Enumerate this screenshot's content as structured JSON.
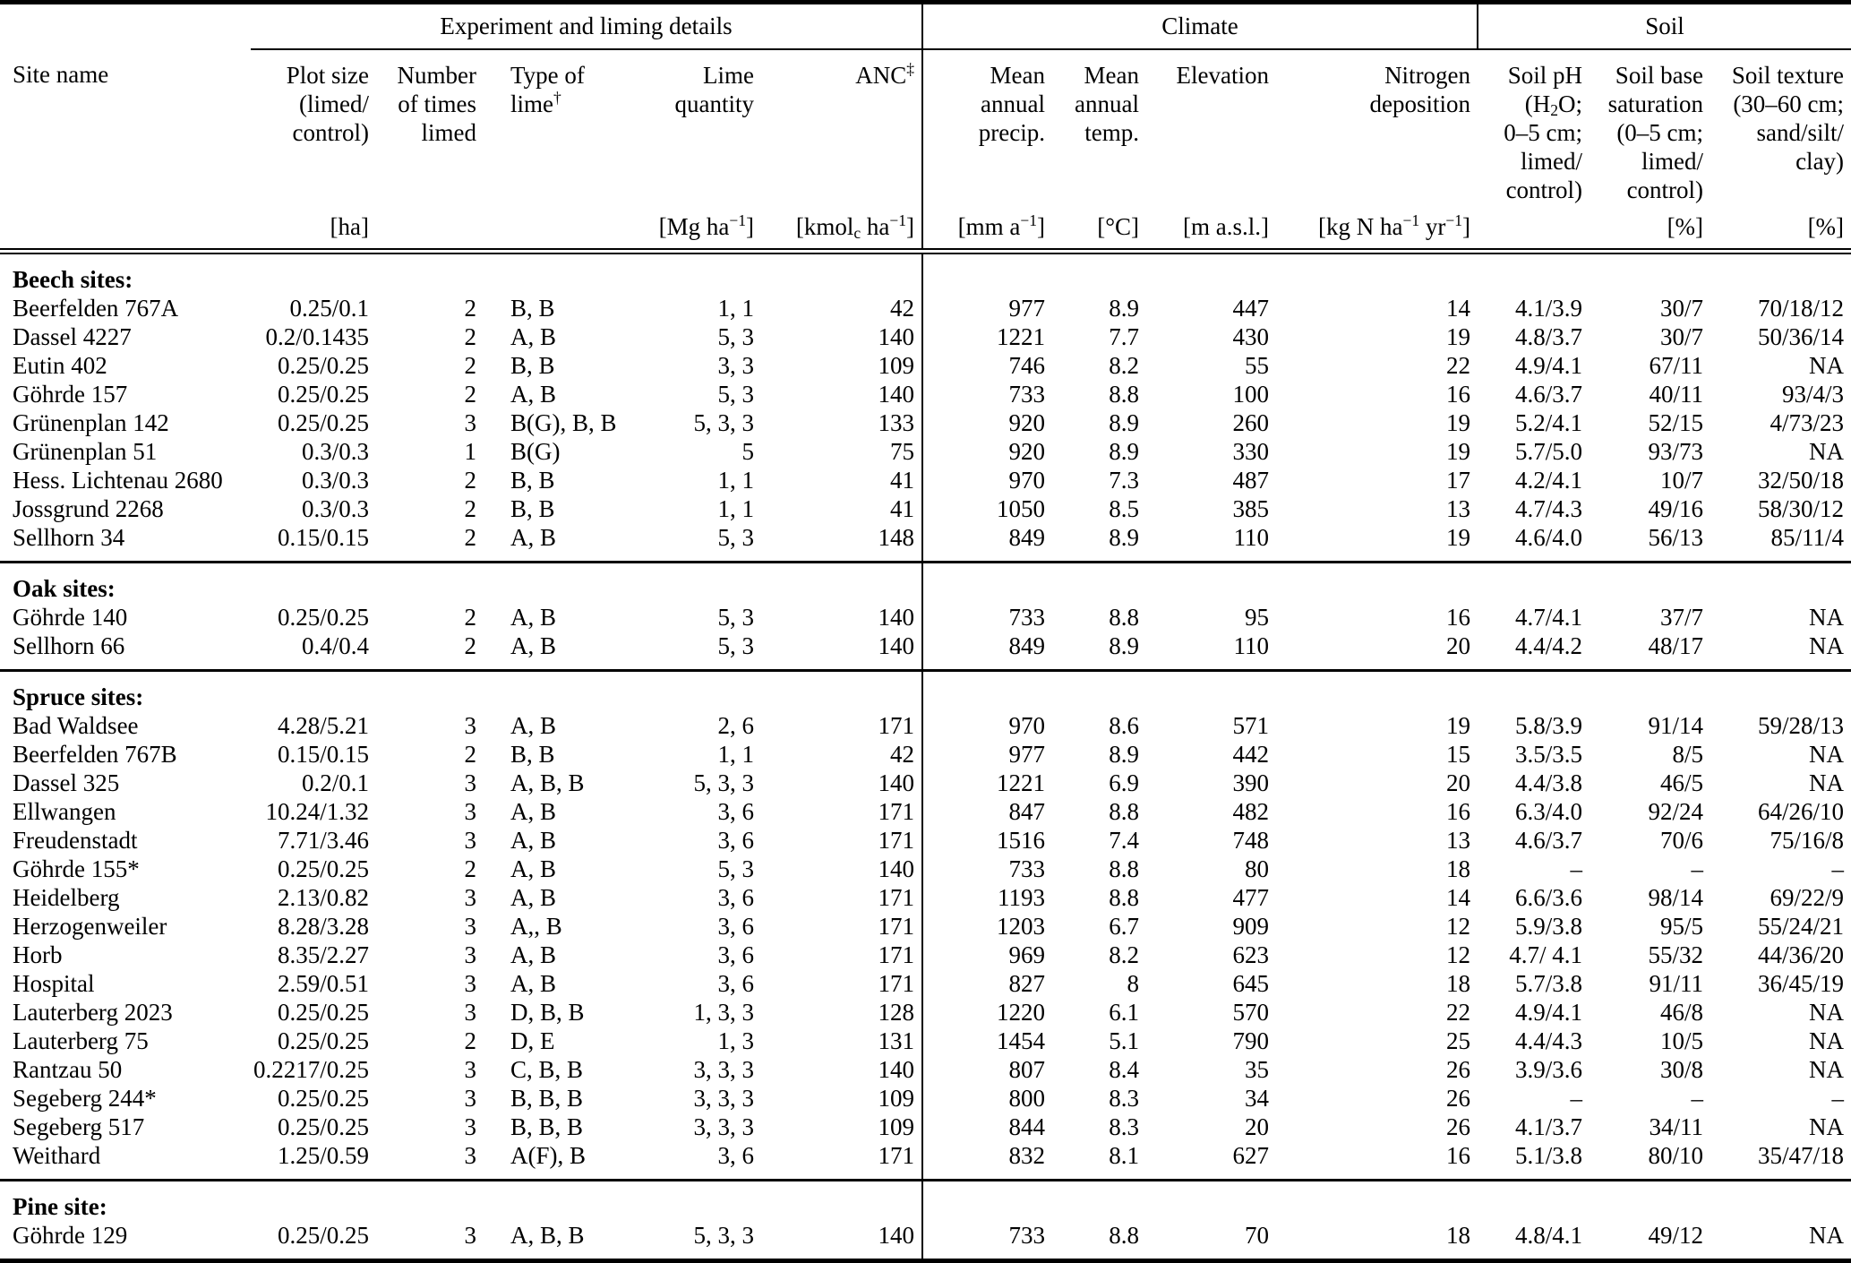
{
  "table": {
    "group_headers": {
      "liming": "Experiment and liming details",
      "climate": "Climate",
      "soil": "Soil"
    },
    "column_headers": {
      "site": "Site name",
      "plot_size": "Plot size<br>(limed/<br>control)",
      "times_limed": "Number<br>of times<br>limed",
      "lime_type": "Type of<br>lime<sup>&#8224;</sup>",
      "lime_quantity": "Lime<br>quantity",
      "anc": "ANC<sup>&#8225;</sup>",
      "precip": "Mean<br>annual<br>precip.",
      "temp": "Mean<br>annual<br>temp.",
      "elevation": "Elevation",
      "n_deposition": "Nitrogen<br>deposition",
      "soil_ph": "Soil pH<br>(H<sub>2</sub>O;<br>0–5 cm;<br>limed/<br>control)",
      "base_saturation": "Soil base<br>saturation<br>(0–5 cm;<br>limed/<br>control)",
      "soil_texture": "Soil texture<br>(30–60 cm;<br>sand/silt/<br>clay)"
    },
    "units": {
      "site": "",
      "plot_size": "[ha]",
      "times_limed": "",
      "lime_type": "",
      "lime_quantity": "[Mg ha<sup>−1</sup>]",
      "anc": "[kmol<sub>c</sub> ha<sup>−1</sup>]",
      "precip": "[mm a<sup>−1</sup>]",
      "temp": "[°C]",
      "elevation": "[m a.s.l.]",
      "n_deposition": "[kg N ha<sup>−1</sup> yr<sup>−1</sup>]",
      "soil_ph": "",
      "base_saturation": "[%]",
      "soil_texture": "[%]"
    },
    "sections": [
      {
        "id": "beech",
        "label": "Beech sites:",
        "rows": [
          [
            "Beerfelden 767A",
            "0.25/0.1",
            "2",
            "B, B",
            "1, 1",
            "42",
            "977",
            "8.9",
            "447",
            "14",
            "4.1/3.9",
            "30/7",
            "70/18/12"
          ],
          [
            "Dassel 4227",
            "0.2/0.1435",
            "2",
            "A, B",
            "5, 3",
            "140",
            "1221",
            "7.7",
            "430",
            "19",
            "4.8/3.7",
            "30/7",
            "50/36/14"
          ],
          [
            "Eutin 402",
            "0.25/0.25",
            "2",
            "B, B",
            "3, 3",
            "109",
            "746",
            "8.2",
            "55",
            "22",
            "4.9/4.1",
            "67/11",
            "NA"
          ],
          [
            "Göhrde 157",
            "0.25/0.25",
            "2",
            "A, B",
            "5, 3",
            "140",
            "733",
            "8.8",
            "100",
            "16",
            "4.6/3.7",
            "40/11",
            "93/4/3"
          ],
          [
            "Grünenplan 142",
            "0.25/0.25",
            "3",
            "B(G), B, B",
            "5, 3, 3",
            "133",
            "920",
            "8.9",
            "260",
            "19",
            "5.2/4.1",
            "52/15",
            "4/73/23"
          ],
          [
            "Grünenplan 51",
            "0.3/0.3",
            "1",
            "B(G)",
            "5",
            "75",
            "920",
            "8.9",
            "330",
            "19",
            "5.7/5.0",
            "93/73",
            "NA"
          ],
          [
            "Hess. Lichtenau 2680",
            "0.3/0.3",
            "2",
            "B, B",
            "1, 1",
            "41",
            "970",
            "7.3",
            "487",
            "17",
            "4.2/4.1",
            "10/7",
            "32/50/18"
          ],
          [
            "Jossgrund 2268",
            "0.3/0.3",
            "2",
            "B, B",
            "1, 1",
            "41",
            "1050",
            "8.5",
            "385",
            "13",
            "4.7/4.3",
            "49/16",
            "58/30/12"
          ],
          [
            "Sellhorn 34",
            "0.15/0.15",
            "2",
            "A, B",
            "5, 3",
            "148",
            "849",
            "8.9",
            "110",
            "19",
            "4.6/4.0",
            "56/13",
            "85/11/4"
          ]
        ]
      },
      {
        "id": "oak",
        "label": "Oak sites:",
        "rows": [
          [
            "Göhrde 140",
            "0.25/0.25",
            "2",
            "A, B",
            "5, 3",
            "140",
            "733",
            "8.8",
            "95",
            "16",
            "4.7/4.1",
            "37/7",
            "NA"
          ],
          [
            "Sellhorn 66",
            "0.4/0.4",
            "2",
            "A, B",
            "5, 3",
            "140",
            "849",
            "8.9",
            "110",
            "20",
            "4.4/4.2",
            "48/17",
            "NA"
          ]
        ]
      },
      {
        "id": "spruce",
        "label": "Spruce sites:",
        "rows": [
          [
            "Bad Waldsee",
            "4.28/5.21",
            "3",
            "A, B",
            "2, 6",
            "171",
            "970",
            "8.6",
            "571",
            "19",
            "5.8/3.9",
            "91/14",
            "59/28/13"
          ],
          [
            "Beerfelden 767B",
            "0.15/0.15",
            "2",
            "B, B",
            "1, 1",
            "42",
            "977",
            "8.9",
            "442",
            "15",
            "3.5/3.5",
            "8/5",
            "NA"
          ],
          [
            "Dassel 325",
            "0.2/0.1",
            "3",
            "A, B, B",
            "5, 3, 3",
            "140",
            "1221",
            "6.9",
            "390",
            "20",
            "4.4/3.8",
            "46/5",
            "NA"
          ],
          [
            "Ellwangen",
            "10.24/1.32",
            "3",
            "A, B",
            "3, 6",
            "171",
            "847",
            "8.8",
            "482",
            "16",
            "6.3/4.0",
            "92/24",
            "64/26/10"
          ],
          [
            "Freudenstadt",
            "7.71/3.46",
            "3",
            "A, B",
            "3, 6",
            "171",
            "1516",
            "7.4",
            "748",
            "13",
            "4.6/3.7",
            "70/6",
            "75/16/8"
          ],
          [
            "Göhrde 155*",
            "0.25/0.25",
            "2",
            "A, B",
            "5, 3",
            "140",
            "733",
            "8.8",
            "80",
            "18",
            "–",
            "–",
            "–"
          ],
          [
            "Heidelberg",
            "2.13/0.82",
            "3",
            "A, B",
            "3, 6",
            "171",
            "1193",
            "8.8",
            "477",
            "14",
            "6.6/3.6",
            "98/14",
            "69/22/9"
          ],
          [
            "Herzogenweiler",
            "8.28/3.28",
            "3",
            "A,, B",
            "3, 6",
            "171",
            "1203",
            "6.7",
            "909",
            "12",
            "5.9/3.8",
            "95/5",
            "55/24/21"
          ],
          [
            "Horb",
            "8.35/2.27",
            "3",
            "A, B",
            "3, 6",
            "171",
            "969",
            "8.2",
            "623",
            "12",
            "4.7/ 4.1",
            "55/32",
            "44/36/20"
          ],
          [
            "Hospital",
            "2.59/0.51",
            "3",
            "A, B",
            "3, 6",
            "171",
            "827",
            "8",
            "645",
            "18",
            "5.7/3.8",
            "91/11",
            "36/45/19"
          ],
          [
            "Lauterberg 2023",
            "0.25/0.25",
            "3",
            "D, B, B",
            "1, 3, 3",
            "128",
            "1220",
            "6.1",
            "570",
            "22",
            "4.9/4.1",
            "46/8",
            "NA"
          ],
          [
            "Lauterberg 75",
            "0.25/0.25",
            "2",
            "D, E",
            "1, 3",
            "131",
            "1454",
            "5.1",
            "790",
            "25",
            "4.4/4.3",
            "10/5",
            "NA"
          ],
          [
            "Rantzau 50",
            "0.2217/0.25",
            "3",
            "C, B, B",
            "3, 3, 3",
            "140",
            "807",
            "8.4",
            "35",
            "26",
            "3.9/3.6",
            "30/8",
            "NA"
          ],
          [
            "Segeberg 244*",
            "0.25/0.25",
            "3",
            "B, B, B",
            "3, 3, 3",
            "109",
            "800",
            "8.3",
            "34",
            "26",
            "–",
            "–",
            "–"
          ],
          [
            "Segeberg 517",
            "0.25/0.25",
            "3",
            "B, B, B",
            "3, 3, 3",
            "109",
            "844",
            "8.3",
            "20",
            "26",
            "4.1/3.7",
            "34/11",
            "NA"
          ],
          [
            "Weithard",
            "1.25/0.59",
            "3",
            "A(F), B",
            "3, 6",
            "171",
            "832",
            "8.1",
            "627",
            "16",
            "5.1/3.8",
            "80/10",
            "35/47/18"
          ]
        ]
      },
      {
        "id": "pine",
        "label": "Pine site:",
        "rows": [
          [
            "Göhrde 129",
            "0.25/0.25",
            "3",
            "A, B, B",
            "5, 3, 3",
            "140",
            "733",
            "8.8",
            "70",
            "18",
            "4.8/4.1",
            "49/12",
            "NA"
          ]
        ]
      }
    ]
  }
}
